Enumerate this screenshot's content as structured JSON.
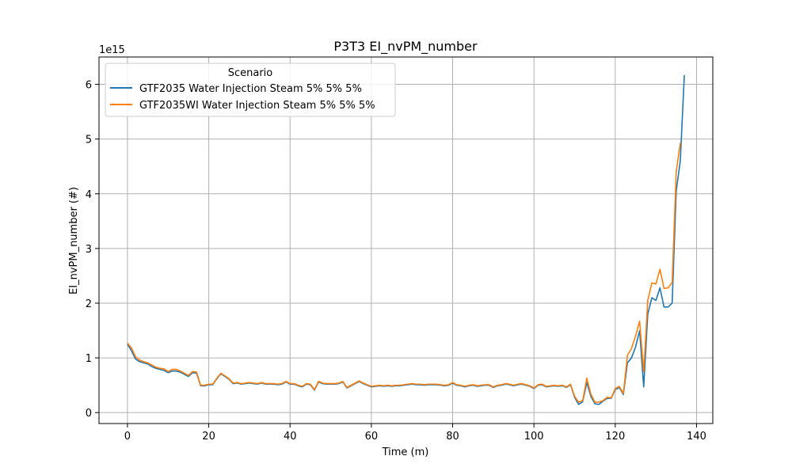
{
  "chart_data": {
    "type": "line",
    "title": "P3T3 EI_nvPM_number",
    "xlabel": "Time (m)",
    "ylabel": "EI_nvPM_number (#)",
    "y_multiplier_label": "1e15",
    "xlim": [
      -7,
      144
    ],
    "ylim": [
      -0.2,
      6.5
    ],
    "xticks": [
      0,
      20,
      40,
      60,
      80,
      100,
      120,
      140
    ],
    "yticks": [
      0,
      1,
      2,
      3,
      4,
      5,
      6
    ],
    "grid": true,
    "legend": {
      "title": "Scenario",
      "placement": "upper-left"
    },
    "series": [
      {
        "name": "GTF2035 Water Injection Steam 5% 5% 5%",
        "color": "#1f77b4",
        "x": [
          0,
          1,
          2,
          3,
          4,
          5,
          6,
          7,
          8,
          9,
          10,
          11,
          12,
          13,
          14,
          15,
          16,
          17,
          18,
          19,
          20,
          21,
          22,
          23,
          24,
          25,
          26,
          27,
          28,
          29,
          30,
          31,
          32,
          33,
          34,
          35,
          36,
          37,
          38,
          39,
          40,
          41,
          42,
          43,
          44,
          45,
          46,
          47,
          48,
          49,
          50,
          51,
          52,
          53,
          54,
          55,
          56,
          57,
          58,
          59,
          60,
          61,
          62,
          63,
          64,
          65,
          66,
          67,
          68,
          69,
          70,
          71,
          72,
          73,
          74,
          75,
          76,
          77,
          78,
          79,
          80,
          81,
          82,
          83,
          84,
          85,
          86,
          87,
          88,
          89,
          90,
          91,
          92,
          93,
          94,
          95,
          96,
          97,
          98,
          99,
          100,
          101,
          102,
          103,
          104,
          105,
          106,
          107,
          108,
          109,
          110,
          111,
          112,
          113,
          114,
          115,
          116,
          117,
          118,
          119,
          120,
          121,
          122,
          123,
          124,
          125,
          126,
          127,
          128,
          129,
          130,
          131,
          132,
          133,
          134,
          135,
          136,
          137
        ],
        "y": [
          1.25,
          1.13,
          0.98,
          0.93,
          0.91,
          0.89,
          0.84,
          0.81,
          0.79,
          0.77,
          0.73,
          0.76,
          0.76,
          0.74,
          0.7,
          0.66,
          0.73,
          0.72,
          0.49,
          0.49,
          0.51,
          0.51,
          0.62,
          0.71,
          0.66,
          0.61,
          0.53,
          0.54,
          0.52,
          0.53,
          0.54,
          0.53,
          0.52,
          0.54,
          0.52,
          0.52,
          0.52,
          0.51,
          0.52,
          0.56,
          0.52,
          0.52,
          0.49,
          0.47,
          0.52,
          0.51,
          0.41,
          0.56,
          0.53,
          0.52,
          0.52,
          0.52,
          0.53,
          0.56,
          0.45,
          0.49,
          0.53,
          0.57,
          0.53,
          0.5,
          0.47,
          0.48,
          0.49,
          0.48,
          0.49,
          0.48,
          0.49,
          0.49,
          0.5,
          0.51,
          0.52,
          0.51,
          0.51,
          0.5,
          0.51,
          0.51,
          0.51,
          0.5,
          0.49,
          0.5,
          0.54,
          0.5,
          0.49,
          0.47,
          0.49,
          0.5,
          0.48,
          0.49,
          0.5,
          0.5,
          0.46,
          0.49,
          0.5,
          0.52,
          0.51,
          0.49,
          0.51,
          0.52,
          0.5,
          0.48,
          0.44,
          0.5,
          0.51,
          0.47,
          0.48,
          0.49,
          0.48,
          0.49,
          0.46,
          0.51,
          0.28,
          0.15,
          0.2,
          0.55,
          0.3,
          0.16,
          0.15,
          0.21,
          0.26,
          0.26,
          0.42,
          0.46,
          0.33,
          0.91,
          1.0,
          1.2,
          1.5,
          0.47,
          1.8,
          2.1,
          2.05,
          2.28,
          1.93,
          1.93,
          2.0,
          4.05,
          4.6,
          6.17
        ]
      },
      {
        "name": "GTF2035WI Water Injection Steam 5% 5% 5%",
        "color": "#ff7f0e",
        "x": [
          0,
          1,
          2,
          3,
          4,
          5,
          6,
          7,
          8,
          9,
          10,
          11,
          12,
          13,
          14,
          15,
          16,
          17,
          18,
          19,
          20,
          21,
          22,
          23,
          24,
          25,
          26,
          27,
          28,
          29,
          30,
          31,
          32,
          33,
          34,
          35,
          36,
          37,
          38,
          39,
          40,
          41,
          42,
          43,
          44,
          45,
          46,
          47,
          48,
          49,
          50,
          51,
          52,
          53,
          54,
          55,
          56,
          57,
          58,
          59,
          60,
          61,
          62,
          63,
          64,
          65,
          66,
          67,
          68,
          69,
          70,
          71,
          72,
          73,
          74,
          75,
          76,
          77,
          78,
          79,
          80,
          81,
          82,
          83,
          84,
          85,
          86,
          87,
          88,
          89,
          90,
          91,
          92,
          93,
          94,
          95,
          96,
          97,
          98,
          99,
          100,
          101,
          102,
          103,
          104,
          105,
          106,
          107,
          108,
          109,
          110,
          111,
          112,
          113,
          114,
          115,
          116,
          117,
          118,
          119,
          120,
          121,
          122,
          123,
          124,
          125,
          126,
          127,
          128,
          129,
          130,
          131,
          132,
          133,
          134,
          135,
          136
        ],
        "y": [
          1.27,
          1.18,
          1.02,
          0.96,
          0.93,
          0.91,
          0.87,
          0.83,
          0.81,
          0.8,
          0.75,
          0.79,
          0.79,
          0.76,
          0.72,
          0.68,
          0.75,
          0.74,
          0.5,
          0.5,
          0.52,
          0.52,
          0.63,
          0.72,
          0.67,
          0.62,
          0.54,
          0.55,
          0.53,
          0.54,
          0.55,
          0.54,
          0.53,
          0.55,
          0.53,
          0.53,
          0.53,
          0.52,
          0.53,
          0.57,
          0.53,
          0.53,
          0.5,
          0.48,
          0.53,
          0.52,
          0.42,
          0.57,
          0.54,
          0.53,
          0.53,
          0.53,
          0.54,
          0.57,
          0.46,
          0.5,
          0.54,
          0.58,
          0.54,
          0.51,
          0.48,
          0.49,
          0.5,
          0.49,
          0.5,
          0.49,
          0.5,
          0.5,
          0.51,
          0.52,
          0.53,
          0.52,
          0.52,
          0.51,
          0.52,
          0.52,
          0.52,
          0.51,
          0.5,
          0.51,
          0.55,
          0.51,
          0.5,
          0.48,
          0.5,
          0.51,
          0.49,
          0.5,
          0.51,
          0.51,
          0.47,
          0.5,
          0.51,
          0.53,
          0.52,
          0.5,
          0.52,
          0.53,
          0.51,
          0.49,
          0.45,
          0.51,
          0.52,
          0.48,
          0.49,
          0.5,
          0.49,
          0.5,
          0.47,
          0.52,
          0.3,
          0.19,
          0.22,
          0.63,
          0.34,
          0.19,
          0.19,
          0.22,
          0.28,
          0.27,
          0.44,
          0.48,
          0.35,
          1.05,
          1.17,
          1.4,
          1.67,
          0.75,
          2.05,
          2.37,
          2.35,
          2.62,
          2.27,
          2.28,
          2.38,
          4.4,
          4.93
        ]
      }
    ]
  }
}
